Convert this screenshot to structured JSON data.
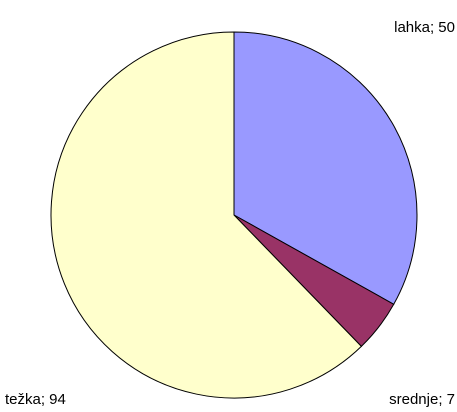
{
  "chart_data": {
    "type": "pie",
    "values": [
      50,
      7,
      94
    ],
    "value_labels": [
      "lahka; 50",
      "srednje; 7",
      "težka; 94"
    ],
    "colors": [
      "#9999ff",
      "#993366",
      "#ffffcc"
    ]
  }
}
